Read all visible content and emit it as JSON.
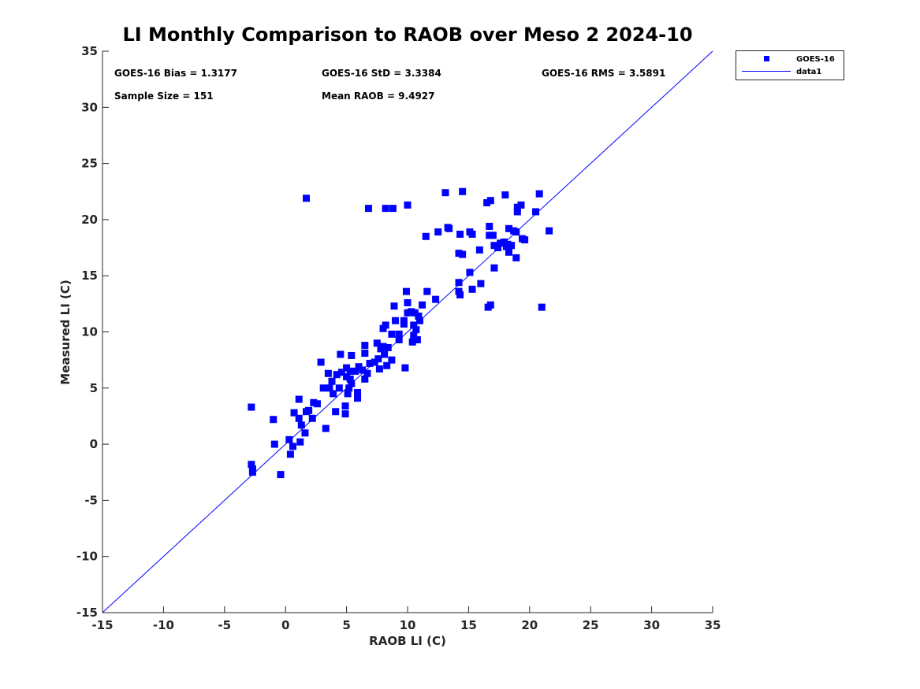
{
  "chart_data": {
    "type": "scatter",
    "title": "LI Monthly Comparison to RAOB over Meso 2 2024-10",
    "xlabel": "RAOB LI (C)",
    "ylabel": "Measured LI (C)",
    "xlim": [
      -15,
      35
    ],
    "ylim": [
      -15,
      35
    ],
    "xticks": [
      "-15",
      "-10",
      "-5",
      "0",
      "5",
      "10",
      "15",
      "20",
      "25",
      "30",
      "35"
    ],
    "yticks": [
      "-15",
      "-10",
      "-5",
      "0",
      "5",
      "10",
      "15",
      "20",
      "25",
      "30",
      "35"
    ],
    "grid": false,
    "legend": {
      "placement": "top-right-outside",
      "entries": [
        "GOES-16",
        "data1"
      ]
    },
    "stats": {
      "bias": "GOES-16 Bias = 1.3177",
      "std": "GOES-16 StD = 3.3384",
      "rms": "GOES-16 RMS = 3.5891",
      "sample": "Sample Size = 151",
      "mean": "Mean RAOB = 9.4927"
    },
    "colors": {
      "marker": "#0000ff",
      "line": "#0000ff"
    },
    "series": [
      {
        "name": "GOES-16",
        "kind": "marker",
        "points": [
          [
            1.7,
            21.9
          ],
          [
            6.8,
            21.0
          ],
          [
            8.2,
            21.0
          ],
          [
            8.8,
            21.0
          ],
          [
            10.0,
            21.3
          ],
          [
            13.1,
            22.4
          ],
          [
            14.5,
            22.5
          ],
          [
            16.5,
            21.5
          ],
          [
            16.8,
            21.7
          ],
          [
            18.0,
            22.2
          ],
          [
            20.8,
            22.3
          ],
          [
            20.5,
            20.7
          ],
          [
            19.0,
            20.7
          ],
          [
            19.0,
            21.1
          ],
          [
            19.3,
            21.3
          ],
          [
            21.6,
            19.0
          ],
          [
            21.0,
            12.2
          ],
          [
            11.5,
            18.5
          ],
          [
            12.5,
            18.9
          ],
          [
            13.3,
            19.3
          ],
          [
            13.4,
            19.2
          ],
          [
            14.3,
            18.7
          ],
          [
            15.1,
            18.9
          ],
          [
            15.3,
            18.7
          ],
          [
            16.7,
            19.4
          ],
          [
            16.7,
            18.6
          ],
          [
            17.0,
            18.6
          ],
          [
            18.3,
            19.2
          ],
          [
            18.7,
            19.0
          ],
          [
            18.9,
            18.9
          ],
          [
            19.4,
            18.3
          ],
          [
            19.6,
            18.2
          ],
          [
            14.2,
            17.0
          ],
          [
            14.5,
            16.9
          ],
          [
            15.9,
            17.3
          ],
          [
            17.1,
            17.7
          ],
          [
            17.4,
            17.5
          ],
          [
            17.6,
            17.9
          ],
          [
            17.9,
            18.0
          ],
          [
            18.1,
            17.6
          ],
          [
            18.2,
            17.8
          ],
          [
            18.3,
            17.4
          ],
          [
            18.5,
            17.7
          ],
          [
            18.3,
            17.1
          ],
          [
            18.9,
            16.6
          ],
          [
            17.1,
            15.7
          ],
          [
            15.1,
            15.3
          ],
          [
            14.2,
            14.4
          ],
          [
            16.0,
            14.3
          ],
          [
            15.3,
            13.8
          ],
          [
            14.3,
            13.3
          ],
          [
            14.2,
            13.6
          ],
          [
            16.6,
            12.2
          ],
          [
            16.8,
            12.4
          ],
          [
            9.9,
            13.6
          ],
          [
            11.6,
            13.6
          ],
          [
            12.3,
            12.9
          ],
          [
            8.9,
            12.3
          ],
          [
            10.0,
            12.6
          ],
          [
            11.2,
            12.4
          ],
          [
            8.0,
            10.3
          ],
          [
            8.2,
            10.6
          ],
          [
            9.0,
            11.0
          ],
          [
            9.7,
            10.7
          ],
          [
            9.7,
            11.0
          ],
          [
            10.0,
            11.7
          ],
          [
            10.3,
            11.8
          ],
          [
            10.6,
            11.7
          ],
          [
            10.9,
            11.4
          ],
          [
            11.0,
            11.0
          ],
          [
            10.5,
            10.6
          ],
          [
            10.7,
            10.2
          ],
          [
            8.7,
            9.8
          ],
          [
            9.3,
            9.8
          ],
          [
            9.3,
            9.3
          ],
          [
            10.5,
            9.7
          ],
          [
            10.4,
            9.1
          ],
          [
            10.8,
            9.3
          ],
          [
            9.8,
            6.8
          ],
          [
            6.5,
            8.8
          ],
          [
            6.5,
            8.1
          ],
          [
            7.5,
            9.0
          ],
          [
            7.8,
            8.5
          ],
          [
            8.0,
            8.7
          ],
          [
            8.4,
            8.6
          ],
          [
            8.1,
            8.0
          ],
          [
            7.6,
            7.6
          ],
          [
            7.3,
            7.3
          ],
          [
            6.9,
            7.2
          ],
          [
            8.7,
            7.5
          ],
          [
            8.3,
            7.0
          ],
          [
            4.5,
            8.0
          ],
          [
            5.4,
            7.9
          ],
          [
            2.9,
            7.3
          ],
          [
            3.5,
            6.3
          ],
          [
            4.2,
            6.2
          ],
          [
            4.6,
            6.4
          ],
          [
            5.0,
            6.8
          ],
          [
            5.3,
            6.5
          ],
          [
            5.7,
            6.5
          ],
          [
            6.0,
            6.9
          ],
          [
            6.3,
            6.6
          ],
          [
            6.7,
            6.3
          ],
          [
            6.5,
            5.8
          ],
          [
            7.7,
            6.7
          ],
          [
            5.0,
            6.0
          ],
          [
            5.3,
            5.8
          ],
          [
            5.4,
            5.4
          ],
          [
            5.2,
            5.0
          ],
          [
            5.1,
            4.5
          ],
          [
            5.9,
            4.6
          ],
          [
            5.9,
            4.1
          ],
          [
            3.6,
            5.0
          ],
          [
            3.8,
            5.6
          ],
          [
            3.9,
            4.5
          ],
          [
            4.4,
            5.0
          ],
          [
            3.1,
            5.0
          ],
          [
            2.6,
            3.6
          ],
          [
            2.3,
            3.7
          ],
          [
            4.1,
            2.9
          ],
          [
            4.9,
            3.4
          ],
          [
            4.9,
            2.7
          ],
          [
            1.1,
            4.0
          ],
          [
            1.7,
            2.9
          ],
          [
            1.9,
            3.0
          ],
          [
            1.1,
            2.3
          ],
          [
            1.3,
            1.7
          ],
          [
            1.6,
            1.0
          ],
          [
            3.3,
            1.4
          ],
          [
            2.2,
            2.3
          ],
          [
            0.7,
            2.8
          ],
          [
            0.3,
            0.4
          ],
          [
            -2.8,
            3.3
          ],
          [
            -1.0,
            2.2
          ],
          [
            -0.9,
            0.0
          ],
          [
            1.2,
            0.2
          ],
          [
            0.6,
            -0.2
          ],
          [
            0.4,
            -0.9
          ],
          [
            -0.4,
            -2.7
          ],
          [
            -2.8,
            -1.8
          ],
          [
            -2.7,
            -2.2
          ],
          [
            -2.7,
            -2.5
          ]
        ]
      },
      {
        "name": "data1",
        "kind": "line",
        "points": [
          [
            -15,
            -15
          ],
          [
            35,
            35
          ]
        ]
      }
    ]
  }
}
